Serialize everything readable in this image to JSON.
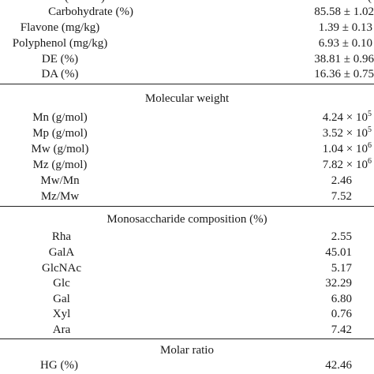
{
  "section_top": {
    "rows": [
      {
        "label": "Carbohydrate (%)",
        "value": "85.58 ± 1.02"
      },
      {
        "label": "Flavone (mg/kg)",
        "value": "1.39 ± 0.13"
      },
      {
        "label": "Polyphenol (mg/kg)",
        "value": "6.93 ± 0.10"
      },
      {
        "label": "DE (%)",
        "value": "38.81 ± 0.96"
      },
      {
        "label": "DA (%)",
        "value": "16.36 ± 0.75"
      }
    ]
  },
  "molecular_weight": {
    "header": "Molecular weight",
    "rows": [
      {
        "label": "Mn (g/mol)",
        "mantissa": "4.24 × 10",
        "exp": "5"
      },
      {
        "label": "Mp (g/mol)",
        "mantissa": "3.52 × 10",
        "exp": "5"
      },
      {
        "label": "Mw (g/mol)",
        "mantissa": "1.04 × 10",
        "exp": "6"
      },
      {
        "label": "Mz (g/mol)",
        "mantissa": "7.82 × 10",
        "exp": "6"
      },
      {
        "label": "Mw/Mn",
        "value": "2.46"
      },
      {
        "label": "Mz/Mw",
        "value": "7.52"
      }
    ]
  },
  "monosaccharide": {
    "header": "Monosaccharide composition (%)",
    "rows": [
      {
        "label": "Rha",
        "value": "2.55"
      },
      {
        "label": "GalA",
        "value": "45.01"
      },
      {
        "label": "GlcNAc",
        "value": "5.17"
      },
      {
        "label": "Glc",
        "value": "32.29"
      },
      {
        "label": "Gal",
        "value": "6.80"
      },
      {
        "label": "Xyl",
        "value": "0.76"
      },
      {
        "label": "Ara",
        "value": "7.42"
      }
    ]
  },
  "molar_ratio": {
    "header": "Molar ratio",
    "rows": [
      {
        "label": "HG (%)",
        "value": "42.46"
      }
    ]
  }
}
